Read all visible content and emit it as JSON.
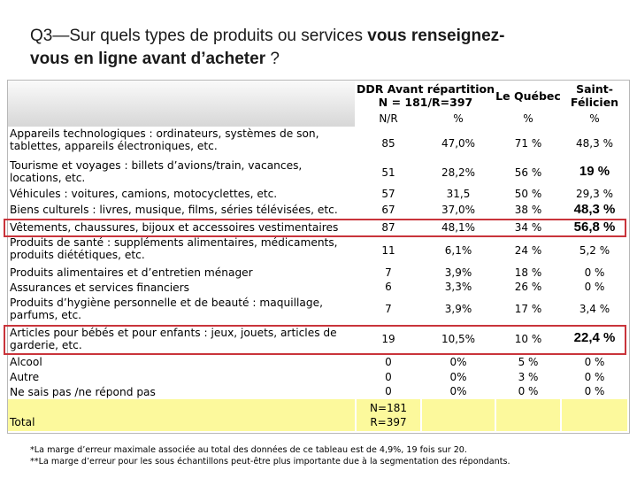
{
  "title": {
    "prefix": "Q3—Sur quels types de produits ou services ",
    "bold1": "vous renseignez-",
    "line2_bold": "vous en ligne avant d’acheter",
    "suffix": " ?"
  },
  "header": {
    "ddr_line1": "DDR Avant répartition",
    "ddr_line2": "N = 181/R=397",
    "quebec": "Le Québec",
    "stfel_line1": "Saint-",
    "stfel_line2": "Félicien",
    "sub_nr": "N/R",
    "sub_pct1": "%",
    "sub_pct2": "%",
    "sub_pct3": "%"
  },
  "rows": [
    {
      "label": "Appareils technologiques : ordinateurs, systèmes de son,",
      "label2": "tablettes, appareils électroniques, etc.",
      "nr": "85",
      "pct": "47,0%",
      "qc": "71 %",
      "sf": "48,3 %"
    },
    {
      "label": "Tourisme et voyages : billets d’avions/train, vacances,",
      "label2": "locations, etc.",
      "nr": "51",
      "pct": "28,2%",
      "qc": "56 %",
      "sf": "19 %"
    },
    {
      "label": "Véhicules : voitures, camions, motocyclettes, etc.",
      "label2": "",
      "nr": "57",
      "pct": "31,5",
      "qc": "50 %",
      "sf": "29,3 %"
    },
    {
      "label": "Biens culturels : livres, musique, films, séries télévisées, etc.",
      "label2": "",
      "nr": "67",
      "pct": "37,0%",
      "qc": "38 %",
      "sf": "48,3 %"
    },
    {
      "label": "Vêtements, chaussures, bijoux et accessoires vestimentaires",
      "label2": "",
      "nr": "87",
      "pct": "48,1%",
      "qc": "34 %",
      "sf": "56,8 %"
    },
    {
      "label": "Produits de santé : suppléments alimentaires, médicaments,",
      "label2": "produits diététiques, etc.",
      "nr": "11",
      "pct": "6,1%",
      "qc": "24 %",
      "sf": "5,2 %"
    },
    {
      "label": "Produits alimentaires et d’entretien ménager",
      "label2": "",
      "nr": "7",
      "pct": "3,9%",
      "qc": "18 %",
      "sf": "0 %"
    },
    {
      "label": "Assurances et services financiers",
      "label2": "",
      "nr": "6",
      "pct": "3,3%",
      "qc": "26 %",
      "sf": "0 %"
    },
    {
      "label": "Produits d’hygiène personnelle et de beauté : maquillage,",
      "label2": "parfums, etc.",
      "nr": "7",
      "pct": "3,9%",
      "qc": "17 %",
      "sf": "3,4 %"
    },
    {
      "label": "Articles pour bébés et pour enfants : jeux, jouets, articles de",
      "label2": "garderie, etc.",
      "nr": "19",
      "pct": "10,5%",
      "qc": "10 %",
      "sf": "22,4 %"
    },
    {
      "label": "Alcool",
      "label2": "",
      "nr": "0",
      "pct": "0%",
      "qc": "5 %",
      "sf": "0 %"
    },
    {
      "label": "Autre",
      "label2": "",
      "nr": "0",
      "pct": "0%",
      "qc": "3 %",
      "sf": "0 %"
    },
    {
      "label": "Ne sais pas /ne répond pas",
      "label2": "",
      "nr": "0",
      "pct": "0%",
      "qc": "0 %",
      "sf": "0 %"
    }
  ],
  "total": {
    "label": "Total",
    "n_line1": "N=181",
    "n_line2": "R=397"
  },
  "footnotes": {
    "line1": "*La marge d’erreur maximale associée au total des données de ce tableau est de 4,9%, 19 fois sur 20.",
    "line2": "**La marge d’erreur pour les sous échantillons peut-être plus importante due à la segmentation des répondants."
  },
  "colors": {
    "highlight_border": "#c9343b",
    "total_fill": "#fcf99c",
    "header_gradient_top": "#fafafa",
    "header_gradient_bottom": "#d7d7d7"
  }
}
